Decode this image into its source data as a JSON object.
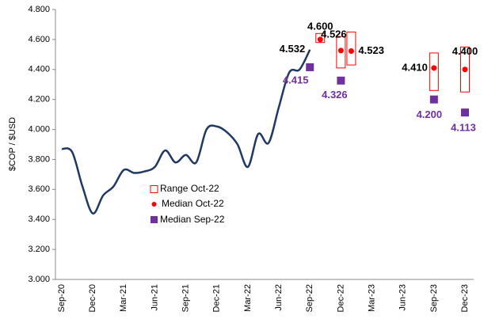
{
  "chart_data": {
    "type": "line",
    "y_label": "$COP / $USD",
    "categories": [
      "Sep-20",
      null,
      null,
      "Dec-20",
      null,
      null,
      "Mar-21",
      null,
      null,
      "Jun-21",
      null,
      null,
      "Sep-21",
      null,
      null,
      "Dec-21",
      null,
      null,
      "Mar-22",
      null,
      null,
      "Jun-22",
      null,
      null,
      "Sep-22",
      null,
      null,
      "Dec-22",
      null,
      null,
      "Mar-23",
      null,
      null,
      "Jun-23",
      null,
      null,
      "Sep-23",
      null,
      null,
      "Dec-23"
    ],
    "ylim": [
      3.0,
      4.8
    ],
    "yticks": [
      {
        "value": 3.0,
        "label": "3.000"
      },
      {
        "value": 3.2,
        "label": "3.200"
      },
      {
        "value": 3.4,
        "label": "3.400"
      },
      {
        "value": 3.6,
        "label": "3.600"
      },
      {
        "value": 3.8,
        "label": "3.800"
      },
      {
        "value": 4.0,
        "label": "4.000"
      },
      {
        "value": 4.2,
        "label": "4.200"
      },
      {
        "value": 4.4,
        "label": "4.400"
      },
      {
        "value": 4.6,
        "label": "4.600"
      },
      {
        "value": 4.8,
        "label": "4.800"
      }
    ],
    "series": [
      {
        "color": "#1f3864",
        "values": [
          3.87,
          3.85,
          3.62,
          3.44,
          3.56,
          3.62,
          3.73,
          3.71,
          3.72,
          3.75,
          3.86,
          3.78,
          3.83,
          3.78,
          4.0,
          4.02,
          3.98,
          3.9,
          3.75,
          3.97,
          3.91,
          4.15,
          4.38,
          4.4,
          4.532,
          null,
          null,
          null,
          null,
          null,
          null,
          null,
          null,
          null,
          null,
          null,
          null,
          null,
          null,
          null
        ],
        "value_labels": [
          null,
          null,
          null,
          null,
          null,
          null,
          null,
          null,
          null,
          null,
          null,
          null,
          null,
          null,
          null,
          null,
          null,
          null,
          null,
          null,
          null,
          null,
          null,
          null,
          "4.532",
          null,
          null,
          null,
          null,
          null,
          null,
          null,
          null,
          null,
          null,
          null,
          null,
          null,
          null,
          null
        ]
      },
      {
        "name": "Range Oct-22",
        "color": "#ff0000",
        "low": [
          null,
          null,
          null,
          null,
          null,
          null,
          null,
          null,
          null,
          null,
          null,
          null,
          null,
          null,
          null,
          null,
          null,
          null,
          null,
          null,
          null,
          null,
          null,
          null,
          null,
          4.58,
          null,
          4.41,
          4.43,
          null,
          null,
          null,
          null,
          null,
          null,
          null,
          4.26,
          null,
          null,
          4.25
        ],
        "high": [
          null,
          null,
          null,
          null,
          null,
          null,
          null,
          null,
          null,
          null,
          null,
          null,
          null,
          null,
          null,
          null,
          null,
          null,
          null,
          null,
          null,
          null,
          null,
          null,
          null,
          4.64,
          null,
          4.62,
          4.65,
          null,
          null,
          null,
          null,
          null,
          null,
          null,
          4.51,
          null,
          null,
          4.55
        ]
      },
      {
        "name": "Median Oct-22",
        "color": "#ff0000",
        "values": [
          null,
          null,
          null,
          null,
          null,
          null,
          null,
          null,
          null,
          null,
          null,
          null,
          null,
          null,
          null,
          null,
          null,
          null,
          null,
          null,
          null,
          null,
          null,
          null,
          null,
          4.6,
          null,
          4.526,
          4.523,
          null,
          null,
          null,
          null,
          null,
          null,
          null,
          4.41,
          null,
          null,
          4.4
        ],
        "value_labels": [
          null,
          null,
          null,
          null,
          null,
          null,
          null,
          null,
          null,
          null,
          null,
          null,
          null,
          null,
          null,
          null,
          null,
          null,
          null,
          null,
          null,
          null,
          null,
          null,
          null,
          "4.600",
          null,
          "4.526",
          "4.523",
          null,
          null,
          null,
          null,
          null,
          null,
          null,
          "4.410",
          null,
          null,
          "4.400"
        ]
      },
      {
        "name": "Median Sep-22",
        "color": "#7030a0",
        "values": [
          null,
          null,
          null,
          null,
          null,
          null,
          null,
          null,
          null,
          null,
          null,
          null,
          null,
          null,
          null,
          null,
          null,
          null,
          null,
          null,
          null,
          null,
          null,
          null,
          4.415,
          null,
          null,
          4.326,
          null,
          null,
          null,
          null,
          null,
          null,
          null,
          null,
          4.2,
          null,
          null,
          4.113
        ],
        "value_labels": [
          null,
          null,
          null,
          null,
          null,
          null,
          null,
          null,
          null,
          null,
          null,
          null,
          null,
          null,
          null,
          null,
          null,
          null,
          null,
          null,
          null,
          null,
          null,
          null,
          "4.415",
          null,
          null,
          "4.326",
          null,
          null,
          null,
          null,
          null,
          null,
          null,
          null,
          "4.200",
          null,
          null,
          "4.113"
        ]
      }
    ]
  }
}
